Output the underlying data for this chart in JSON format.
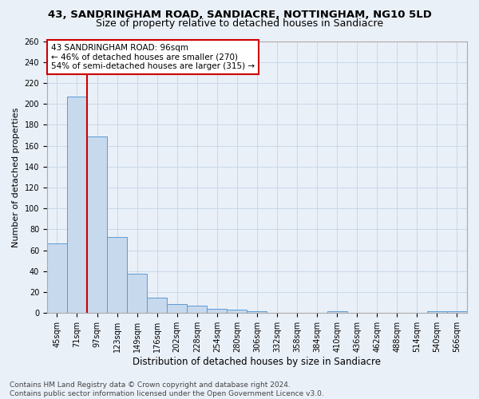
{
  "title1": "43, SANDRINGHAM ROAD, SANDIACRE, NOTTINGHAM, NG10 5LD",
  "title2": "Size of property relative to detached houses in Sandiacre",
  "xlabel": "Distribution of detached houses by size in Sandiacre",
  "ylabel": "Number of detached properties",
  "bin_labels": [
    "45sqm",
    "71sqm",
    "97sqm",
    "123sqm",
    "149sqm",
    "176sqm",
    "202sqm",
    "228sqm",
    "254sqm",
    "280sqm",
    "306sqm",
    "332sqm",
    "358sqm",
    "384sqm",
    "410sqm",
    "436sqm",
    "462sqm",
    "488sqm",
    "514sqm",
    "540sqm",
    "566sqm"
  ],
  "bar_values": [
    67,
    207,
    169,
    73,
    38,
    15,
    9,
    7,
    4,
    3,
    2,
    0,
    0,
    0,
    2,
    0,
    0,
    0,
    0,
    2,
    2
  ],
  "bar_color": "#c7d9ed",
  "bar_edge_color": "#5b9bd5",
  "grid_color": "#c8d8e8",
  "background_color": "#eaf0f8",
  "vline_x": 1.5,
  "vline_color": "#cc0000",
  "annotation_text": "43 SANDRINGHAM ROAD: 96sqm\n← 46% of detached houses are smaller (270)\n54% of semi-detached houses are larger (315) →",
  "annotation_box_color": "#ffffff",
  "annotation_box_edge": "#cc0000",
  "ylim": [
    0,
    260
  ],
  "yticks": [
    0,
    20,
    40,
    60,
    80,
    100,
    120,
    140,
    160,
    180,
    200,
    220,
    240,
    260
  ],
  "footer_text": "Contains HM Land Registry data © Crown copyright and database right 2024.\nContains public sector information licensed under the Open Government Licence v3.0.",
  "title1_fontsize": 9.5,
  "title2_fontsize": 9,
  "xlabel_fontsize": 8.5,
  "ylabel_fontsize": 8,
  "tick_fontsize": 7,
  "annotation_fontsize": 7.5,
  "footer_fontsize": 6.5
}
